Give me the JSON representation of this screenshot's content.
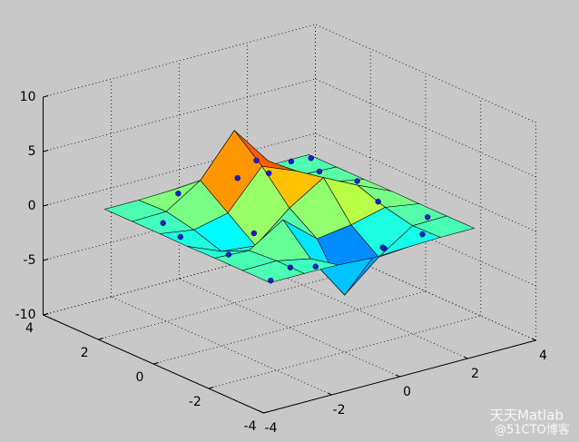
{
  "chart_data": {
    "type": "surface3d",
    "x": [
      -3,
      -2,
      -1,
      0,
      1,
      2,
      3
    ],
    "y": [
      -3,
      -2,
      -1,
      0,
      1,
      2,
      3
    ],
    "z": [
      [
        0,
        0.01,
        -0.03,
        -0.24,
        -0.11,
        0,
        0
      ],
      [
        0,
        0.05,
        -0.59,
        -4.76,
        -2.1,
        -0.06,
        0
      ],
      [
        0.01,
        -0.13,
        1.86,
        -0.72,
        -0.27,
        0.5,
        0
      ],
      [
        -0.04,
        -1.33,
        -1.65,
        0.98,
        2.94,
        1.41,
        0.03
      ],
      [
        0,
        -0.48,
        0.23,
        3.69,
        2.43,
        0.58,
        0
      ],
      [
        0,
        0.08,
        2.1,
        5.86,
        2.21,
        0.13,
        0
      ],
      [
        0,
        0,
        0.11,
        0.3,
        0.11,
        0,
        0
      ]
    ],
    "xlim": [
      -4,
      4
    ],
    "ylim": [
      -4,
      4
    ],
    "zlim": [
      -10,
      10
    ],
    "xticks": [
      -4,
      -2,
      0,
      2,
      4
    ],
    "yticks": [
      -4,
      -2,
      0,
      2,
      4
    ],
    "zticks": [
      -10,
      -5,
      0,
      5,
      10
    ],
    "grid": true,
    "colormap": "jet",
    "edge_color": "#000000",
    "scatter": {
      "x": [
        -2.5,
        -2.8,
        -2,
        -1.5,
        -2.6,
        -1,
        0.5,
        1.5,
        2.5,
        2.8,
        2.2,
        2.6,
        1.8,
        0.6,
        -0.8,
        2.9,
        2.4,
        -2.9,
        0,
        1.2
      ],
      "y": [
        1.5,
        0.5,
        -2.5,
        -2.8,
        -1,
        2.8,
        2.5,
        2.6,
        2,
        1,
        -0.5,
        -1.8,
        -2.6,
        -2.7,
        0.3,
        2.8,
        2.9,
        -2.9,
        1.2,
        -1.9
      ],
      "z": [
        0,
        0.1,
        0,
        0,
        0,
        0,
        0.5,
        0,
        0,
        0,
        0.3,
        0,
        0,
        -0.2,
        -1,
        0,
        0,
        0,
        4,
        -1.5
      ],
      "color": "#1a1ad0"
    }
  },
  "watermark": {
    "brand": "天天Matlab",
    "source": "@51CTO博客"
  }
}
